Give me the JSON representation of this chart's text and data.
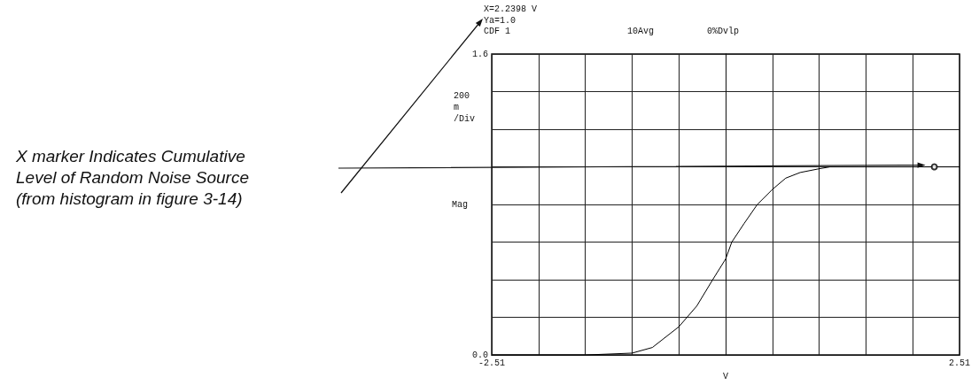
{
  "chart_data": {
    "type": "line",
    "xlabel": "V",
    "ylabel": "Mag",
    "annotations": [
      "X=2.2398 V",
      "Ya=1.0",
      "CDF 1",
      "10Avg",
      "0%Dvlp",
      "200 m /Div",
      "X marker Indicates Cumulative\nLevel of Random Noise Source\n(from histogram in figure 3-14)"
    ],
    "series": [
      {
        "type": "line",
        "color": "#000000",
        "marker": "none",
        "x": [
          -2.51,
          -1.506,
          -1.004,
          -0.786,
          -0.502,
          -0.31,
          -0.139,
          0.0,
          0.066,
          0.2,
          0.34,
          0.502,
          0.645,
          0.8,
          1.004,
          1.12,
          1.5,
          2.0,
          2.51
        ],
        "values": [
          0.0,
          0.0,
          0.01,
          0.04,
          0.15,
          0.26,
          0.4,
          0.51,
          0.6,
          0.7,
          0.8,
          0.88,
          0.94,
          0.97,
          0.99,
          1.0,
          1.0,
          1.0,
          1.0
        ]
      },
      {
        "type": "scatter",
        "color": "#000000",
        "marker": "circle",
        "x": [
          2.2398
        ],
        "values": [
          1.0
        ]
      }
    ],
    "xlim": [
      -2.51,
      2.51
    ],
    "xticks": [
      {
        "value": -2.51,
        "label": "-2.51"
      },
      {
        "value": -2.008,
        "label": null
      },
      {
        "value": -1.506,
        "label": null
      },
      {
        "value": -1.004,
        "label": null
      },
      {
        "value": -0.502,
        "label": null
      },
      {
        "value": 0,
        "label": null
      },
      {
        "value": 0.502,
        "label": null
      },
      {
        "value": 1.004,
        "label": null
      },
      {
        "value": 1.506,
        "label": null
      },
      {
        "value": 2.008,
        "label": null
      },
      {
        "value": 2.51,
        "label": "2.51"
      }
    ],
    "ylim": [
      0,
      1.6
    ],
    "yticks": [
      {
        "value": 0,
        "label": "0.0"
      },
      {
        "value": 0.2,
        "label": null
      },
      {
        "value": 0.4,
        "label": null
      },
      {
        "value": 0.6,
        "label": null
      },
      {
        "value": 0.8,
        "label": null
      },
      {
        "value": 1.0,
        "label": null
      },
      {
        "value": 1.2,
        "label": null
      },
      {
        "value": 1.4,
        "label": null
      },
      {
        "value": 1.6,
        "label": "1.6"
      }
    ],
    "grid": true
  }
}
